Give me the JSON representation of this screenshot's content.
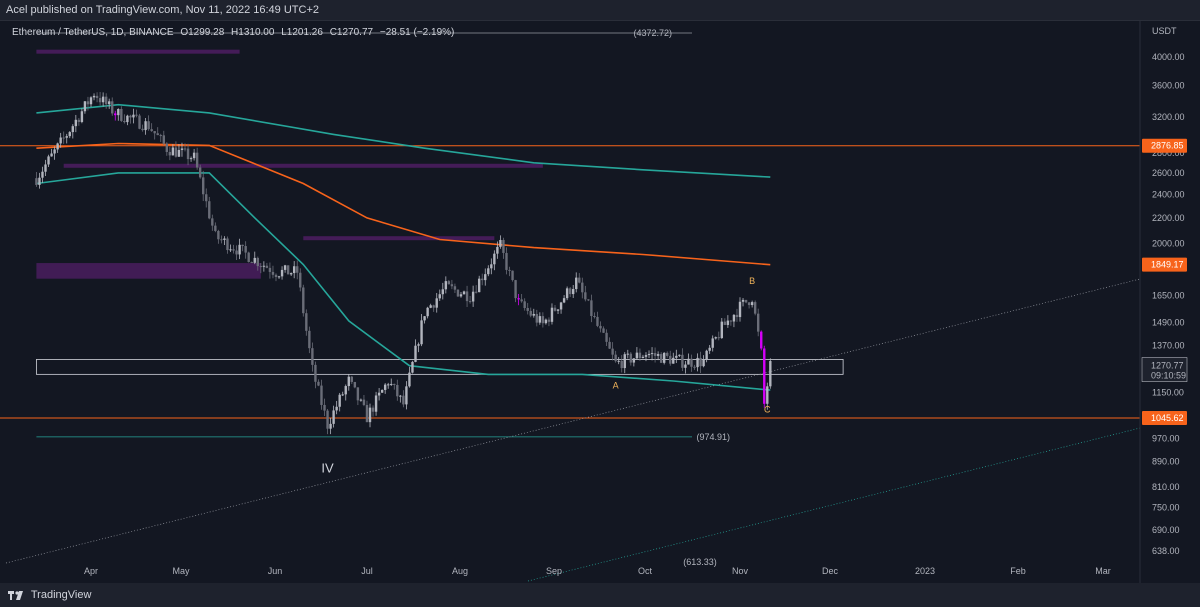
{
  "header": {
    "published": "Acel published on TradingView.com, Nov 11, 2022 16:49 UTC+2"
  },
  "symbol": {
    "name": "Ethereum / TetherUS, 1D, BINANCE",
    "open": "O1299.28",
    "high": "H1310.00",
    "low": "L1201.26",
    "close": "C1270.77",
    "change": "−28.51 (−2.19%)"
  },
  "footer": {
    "brand": "TradingView"
  },
  "colors": {
    "background": "#131722",
    "candle_up": "#b2b5be",
    "candle_down": "#6a6d78",
    "teal_ma": "#26a69a",
    "orange_ma": "#f7631b",
    "purple_zone": "#4a1d5e",
    "magenta_candle": "#d500f9"
  },
  "chart_data": {
    "type": "candlestick",
    "scale": "log",
    "currency_label": "USDT",
    "x_ticks": [
      "Apr",
      "May",
      "Jun",
      "Jul",
      "Aug",
      "Sep",
      "Oct",
      "Nov",
      "Dec",
      "2023",
      "Feb",
      "Mar"
    ],
    "y_ticks": [
      "4000.00",
      "3600.00",
      "3200.00",
      "2800.00",
      "2600.00",
      "2400.00",
      "2200.00",
      "2000.00",
      "1650.00",
      "1490.00",
      "1370.00",
      "1150.00",
      "1045.62",
      "970.00",
      "890.00",
      "810.00",
      "750.00",
      "690.00",
      "638.00"
    ],
    "price_labels": [
      {
        "value": "2876.85",
        "color": "#f7631b"
      },
      {
        "value": "1849.17",
        "color": "#f7631b"
      },
      {
        "value": "1045.62",
        "color": "#f7631b"
      }
    ],
    "current_price": {
      "value": "1270.77",
      "countdown": "09:10:59"
    },
    "horizontal_levels": [
      {
        "label": "(4372.72)",
        "value": 4372.72
      },
      {
        "label": "(974.91)",
        "value": 974.91
      },
      {
        "label": "(613.33)",
        "value": 613.33
      }
    ],
    "wave_labels": [
      {
        "text": "IV",
        "date": "2022-06-18",
        "price": 870
      },
      {
        "text": "A",
        "date": "2022-09-21",
        "price": 1180
      },
      {
        "text": "B",
        "date": "2022-11-05",
        "price": 1740
      },
      {
        "text": "C",
        "date": "2022-11-10",
        "price": 1080
      }
    ],
    "price_path": [
      {
        "date": "2022-03-14",
        "price": 2550
      },
      {
        "date": "2022-03-24",
        "price": 3000
      },
      {
        "date": "2022-04-02",
        "price": 3500
      },
      {
        "date": "2022-04-09",
        "price": 3250
      },
      {
        "date": "2022-04-20",
        "price": 3100
      },
      {
        "date": "2022-04-26",
        "price": 2850
      },
      {
        "date": "2022-05-05",
        "price": 2750
      },
      {
        "date": "2022-05-12",
        "price": 2050
      },
      {
        "date": "2022-05-20",
        "price": 1950
      },
      {
        "date": "2022-06-01",
        "price": 1800
      },
      {
        "date": "2022-06-08",
        "price": 1800
      },
      {
        "date": "2022-06-13",
        "price": 1250
      },
      {
        "date": "2022-06-18",
        "price": 1020
      },
      {
        "date": "2022-06-25",
        "price": 1200
      },
      {
        "date": "2022-07-01",
        "price": 1050
      },
      {
        "date": "2022-07-08",
        "price": 1200
      },
      {
        "date": "2022-07-13",
        "price": 1100
      },
      {
        "date": "2022-07-20",
        "price": 1550
      },
      {
        "date": "2022-07-27",
        "price": 1700
      },
      {
        "date": "2022-08-04",
        "price": 1650
      },
      {
        "date": "2022-08-14",
        "price": 1980
      },
      {
        "date": "2022-08-20",
        "price": 1600
      },
      {
        "date": "2022-08-28",
        "price": 1480
      },
      {
        "date": "2022-09-08",
        "price": 1740
      },
      {
        "date": "2022-09-15",
        "price": 1470
      },
      {
        "date": "2022-09-21",
        "price": 1280
      },
      {
        "date": "2022-10-01",
        "price": 1330
      },
      {
        "date": "2022-10-13",
        "price": 1290
      },
      {
        "date": "2022-10-20",
        "price": 1290
      },
      {
        "date": "2022-10-26",
        "price": 1460
      },
      {
        "date": "2022-11-01",
        "price": 1580
      },
      {
        "date": "2022-11-05",
        "price": 1640
      },
      {
        "date": "2022-11-08",
        "price": 1330
      },
      {
        "date": "2022-11-09",
        "price": 1100
      },
      {
        "date": "2022-11-11",
        "price": 1270
      }
    ],
    "orange_ma": [
      {
        "date": "2022-03-14",
        "price": 2850
      },
      {
        "date": "2022-04-10",
        "price": 2900
      },
      {
        "date": "2022-05-10",
        "price": 2880
      },
      {
        "date": "2022-06-10",
        "price": 2500
      },
      {
        "date": "2022-07-01",
        "price": 2200
      },
      {
        "date": "2022-07-25",
        "price": 2030
      },
      {
        "date": "2022-08-25",
        "price": 1970
      },
      {
        "date": "2022-09-30",
        "price": 1920
      },
      {
        "date": "2022-11-11",
        "price": 1849
      }
    ],
    "teal_ma_upper": [
      {
        "date": "2022-03-14",
        "price": 3250
      },
      {
        "date": "2022-04-10",
        "price": 3350
      },
      {
        "date": "2022-05-10",
        "price": 3250
      },
      {
        "date": "2022-06-20",
        "price": 3000
      },
      {
        "date": "2022-07-20",
        "price": 2850
      },
      {
        "date": "2022-08-25",
        "price": 2700
      },
      {
        "date": "2022-09-30",
        "price": 2630
      },
      {
        "date": "2022-11-11",
        "price": 2560
      }
    ],
    "teal_ma_lower": [
      {
        "date": "2022-03-14",
        "price": 2500
      },
      {
        "date": "2022-04-10",
        "price": 2600
      },
      {
        "date": "2022-05-10",
        "price": 2600
      },
      {
        "date": "2022-05-25",
        "price": 2200
      },
      {
        "date": "2022-06-10",
        "price": 1850
      },
      {
        "date": "2022-06-25",
        "price": 1500
      },
      {
        "date": "2022-07-15",
        "price": 1270
      },
      {
        "date": "2022-08-10",
        "price": 1230
      },
      {
        "date": "2022-09-10",
        "price": 1230
      },
      {
        "date": "2022-10-10",
        "price": 1200
      },
      {
        "date": "2022-11-11",
        "price": 1160
      }
    ],
    "support_box": {
      "start": "2022-03-14",
      "end": "2022-12-05",
      "top": 1300,
      "bottom": 1230
    },
    "purple_zones": [
      {
        "start": "2022-03-14",
        "end": "2022-05-20",
        "price": 4080
      },
      {
        "start": "2022-03-23",
        "end": "2022-08-28",
        "price": 2670
      },
      {
        "start": "2022-06-10",
        "end": "2022-08-12",
        "price": 2040
      },
      {
        "start": "2022-03-14",
        "end": "2022-05-27",
        "top": 1860,
        "bottom": 1755
      }
    ]
  }
}
